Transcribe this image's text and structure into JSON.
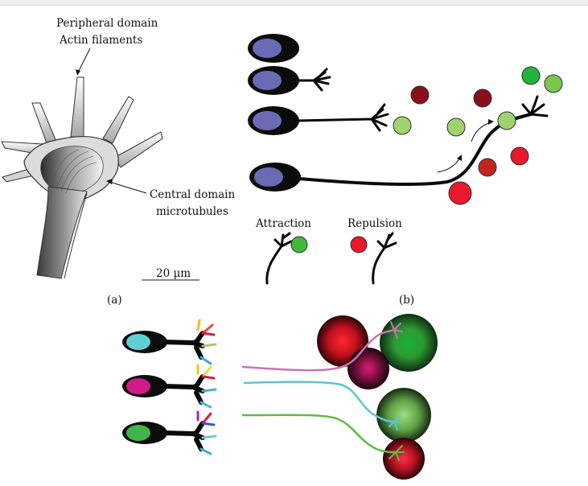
{
  "panel_a": {
    "label": "(a)",
    "peripheral_line1": "Peripheral domain",
    "peripheral_line2": "Actin filaments",
    "central_line1": "Central domain",
    "central_line2": "microtubules",
    "scale_bar": "20 μm"
  },
  "panel_b": {
    "label": "(b)",
    "attraction": "Attraction",
    "repulsion": "Repulsion"
  },
  "colors": {
    "nucleus": "#6b6ab4",
    "cue_attract_light": "#9ed46e",
    "cue_attract_dark": "#22b53a",
    "cue_repel_dark": "#8b0f1a",
    "cue_repel_mid": "#c3251d",
    "cue_repel_bright": "#e8192a",
    "axon_magenta": "#c774b5",
    "axon_cyan": "#5cc6cf",
    "axon_green": "#5fbb46",
    "nucleus_cyan": "#5fcfd6",
    "nucleus_magenta": "#d11b8a",
    "nucleus_green": "#3fb54a"
  }
}
